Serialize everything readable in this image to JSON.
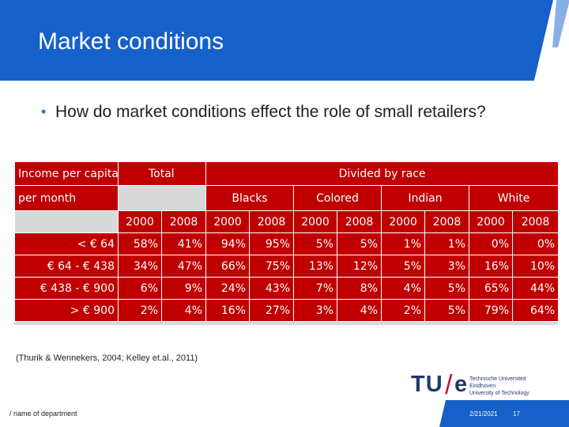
{
  "slide": {
    "title": "Market conditions",
    "bullet": "How do market conditions effect the role of small retailers?",
    "citation": "(Thurik & Wennekers, 2004; Kelley et.al., 2011)",
    "footer_department": "/ name of department",
    "date": "2/21/2021",
    "page_number": "17"
  },
  "logo": {
    "tu": "TU",
    "slash": "/",
    "e": "e",
    "line1": "Technische Universiteit",
    "line2": "Eindhoven",
    "line3": "University of Technology"
  },
  "table": {
    "header_income_1": "Income per capita",
    "header_income_2": "per month",
    "header_total": "Total",
    "header_divided": "Divided by race",
    "races": [
      "Blacks",
      "Colored",
      "Indian",
      "White"
    ],
    "years": [
      "2000",
      "2008",
      "2000",
      "2008",
      "2000",
      "2008",
      "2000",
      "2008",
      "2000",
      "2008"
    ],
    "rows": [
      {
        "label": "< € 64",
        "values": [
          "58%",
          "41%",
          "94%",
          "95%",
          "5%",
          "5%",
          "1%",
          "1%",
          "0%",
          "0%"
        ]
      },
      {
        "label": "€ 64 - € 438",
        "values": [
          "34%",
          "47%",
          "66%",
          "75%",
          "13%",
          "12%",
          "5%",
          "3%",
          "16%",
          "10%"
        ]
      },
      {
        "label": "€ 438 - € 900",
        "values": [
          "6%",
          "9%",
          "24%",
          "43%",
          "7%",
          "8%",
          "4%",
          "5%",
          "65%",
          "44%"
        ]
      },
      {
        "label": "> € 900",
        "values": [
          "2%",
          "4%",
          "16%",
          "27%",
          "3%",
          "4%",
          "2%",
          "5%",
          "79%",
          "64%"
        ]
      }
    ]
  },
  "colors": {
    "header_blue": "#1560c9",
    "table_red": "#c00000",
    "bullet_blue": "#1e73d6",
    "logo_navy": "#1f3a6d",
    "logo_red": "#c8102e"
  }
}
